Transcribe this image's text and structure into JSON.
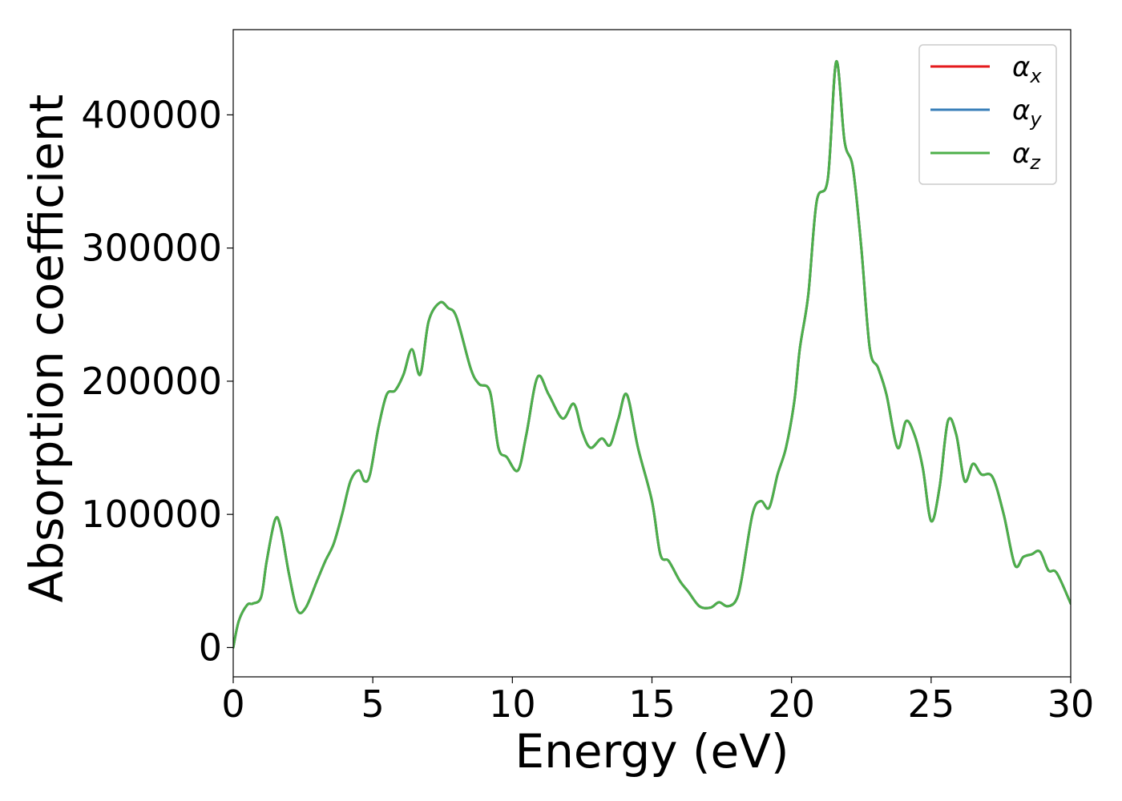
{
  "chart_data": {
    "type": "line",
    "xlabel": "Energy (eV)",
    "ylabel": "Absorption coefficient",
    "xlim": [
      0,
      30
    ],
    "ylim": [
      -22000,
      464000
    ],
    "xticks": [
      0,
      5,
      10,
      15,
      20,
      25,
      30
    ],
    "xtick_labels": [
      "0",
      "5",
      "10",
      "15",
      "20",
      "25",
      "30"
    ],
    "yticks": [
      0,
      100000,
      200000,
      300000,
      400000
    ],
    "ytick_labels": [
      "0",
      "100000",
      "200000",
      "300000",
      "400000"
    ],
    "grid": false,
    "legend_position": "top-right",
    "x": [
      0,
      0.2,
      0.5,
      0.7,
      1.0,
      1.2,
      1.5,
      1.7,
      2.0,
      2.3,
      2.6,
      3.0,
      3.3,
      3.6,
      3.9,
      4.2,
      4.5,
      4.7,
      4.9,
      5.2,
      5.5,
      5.8,
      6.1,
      6.4,
      6.7,
      7.0,
      7.4,
      7.7,
      8.0,
      8.5,
      8.8,
      9.2,
      9.5,
      9.8,
      10.2,
      10.5,
      10.9,
      11.3,
      11.8,
      12.2,
      12.5,
      12.8,
      13.2,
      13.5,
      13.8,
      14.1,
      14.5,
      15.0,
      15.3,
      15.6,
      16.0,
      16.3,
      16.7,
      17.1,
      17.4,
      17.7,
      18.0,
      18.2,
      18.6,
      18.9,
      19.2,
      19.5,
      19.8,
      20.1,
      20.3,
      20.6,
      20.9,
      21.3,
      21.6,
      21.9,
      22.2,
      22.5,
      22.8,
      23.1,
      23.4,
      23.8,
      24.1,
      24.4,
      24.7,
      25.0,
      25.3,
      25.6,
      25.9,
      26.2,
      26.5,
      26.8,
      27.2,
      27.6,
      28.0,
      28.3,
      28.6,
      28.9,
      29.2,
      29.5,
      30.0
    ],
    "series": [
      {
        "name": "αx",
        "color": "#e41a1c",
        "values": [
          0,
          20000,
          32000,
          33000,
          38000,
          65000,
          96000,
          90000,
          55000,
          28000,
          30000,
          50000,
          65000,
          78000,
          100000,
          125000,
          133000,
          125000,
          130000,
          165000,
          190000,
          193000,
          205000,
          224000,
          205000,
          245000,
          259000,
          255000,
          248000,
          210000,
          198000,
          192000,
          150000,
          143000,
          133000,
          160000,
          203000,
          190000,
          172000,
          183000,
          162000,
          150000,
          157000,
          152000,
          172000,
          190000,
          150000,
          110000,
          70000,
          65000,
          50000,
          42000,
          31000,
          30000,
          34000,
          31000,
          35000,
          50000,
          100000,
          110000,
          105000,
          130000,
          150000,
          185000,
          225000,
          265000,
          335000,
          352000,
          440000,
          380000,
          360000,
          300000,
          225000,
          210000,
          190000,
          150000,
          170000,
          160000,
          135000,
          95000,
          120000,
          170000,
          160000,
          125000,
          138000,
          130000,
          128000,
          100000,
          62000,
          68000,
          70000,
          72000,
          58000,
          56000,
          33000
        ]
      },
      {
        "name": "αy",
        "color": "#377eb8",
        "values": [
          0,
          20000,
          32000,
          33000,
          38000,
          65000,
          96000,
          90000,
          55000,
          28000,
          30000,
          50000,
          65000,
          78000,
          100000,
          125000,
          133000,
          125000,
          130000,
          165000,
          190000,
          193000,
          205000,
          224000,
          205000,
          245000,
          259000,
          255000,
          248000,
          210000,
          198000,
          192000,
          150000,
          143000,
          133000,
          160000,
          203000,
          190000,
          172000,
          183000,
          162000,
          150000,
          157000,
          152000,
          172000,
          190000,
          150000,
          110000,
          70000,
          65000,
          50000,
          42000,
          31000,
          30000,
          34000,
          31000,
          35000,
          50000,
          100000,
          110000,
          105000,
          130000,
          150000,
          185000,
          225000,
          265000,
          335000,
          352000,
          440000,
          380000,
          360000,
          300000,
          225000,
          210000,
          190000,
          150000,
          170000,
          160000,
          135000,
          95000,
          120000,
          170000,
          160000,
          125000,
          138000,
          130000,
          128000,
          100000,
          62000,
          68000,
          70000,
          72000,
          58000,
          56000,
          33000
        ]
      },
      {
        "name": "αz",
        "color": "#4daf4a",
        "values": [
          0,
          20000,
          32000,
          33000,
          38000,
          65000,
          96000,
          90000,
          55000,
          28000,
          30000,
          50000,
          65000,
          78000,
          100000,
          125000,
          133000,
          125000,
          130000,
          165000,
          190000,
          193000,
          205000,
          224000,
          205000,
          245000,
          259000,
          255000,
          248000,
          210000,
          198000,
          192000,
          150000,
          143000,
          133000,
          160000,
          203000,
          190000,
          172000,
          183000,
          162000,
          150000,
          157000,
          152000,
          172000,
          190000,
          150000,
          110000,
          70000,
          65000,
          50000,
          42000,
          31000,
          30000,
          34000,
          31000,
          35000,
          50000,
          100000,
          110000,
          105000,
          130000,
          150000,
          185000,
          225000,
          265000,
          335000,
          352000,
          440000,
          380000,
          360000,
          300000,
          225000,
          210000,
          190000,
          150000,
          170000,
          160000,
          135000,
          95000,
          120000,
          170000,
          160000,
          125000,
          138000,
          130000,
          128000,
          100000,
          62000,
          68000,
          70000,
          72000,
          58000,
          56000,
          33000
        ]
      }
    ],
    "legend": [
      {
        "symbol": "α",
        "sub": "x",
        "color": "#e41a1c"
      },
      {
        "symbol": "α",
        "sub": "y",
        "color": "#377eb8"
      },
      {
        "symbol": "α",
        "sub": "z",
        "color": "#4daf4a"
      }
    ]
  }
}
